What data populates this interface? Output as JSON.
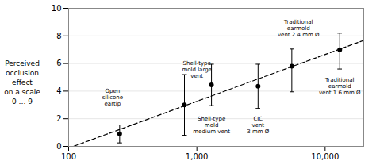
{
  "chart_data": {
    "type": "scatter",
    "y_label": "Perceived\nocclusion\neffect\non a scale\n0 … 9",
    "series": [
      {
        "type": "scatter",
        "color": "#000000",
        "marker": "circle",
        "x": [
          250,
          800,
          1300,
          3000,
          5500,
          13000
        ],
        "values": [
          0.9,
          3.0,
          4.45,
          4.35,
          5.8,
          7.0
        ],
        "error_low": [
          0.65,
          2.2,
          1.5,
          1.6,
          1.85,
          1.4
        ],
        "error_high": [
          0.65,
          2.2,
          1.5,
          1.6,
          1.25,
          1.2
        ]
      },
      {
        "type": "line",
        "color": "#000000",
        "line_style": "dashed",
        "x": [
          110,
          20000
        ],
        "values": [
          0.013,
          7.675
        ]
      }
    ],
    "annotations": [
      {
        "text": "Open\nsilicone\neartip",
        "x": 220,
        "y": 3.55,
        "align": "left"
      },
      {
        "text": "Shell-type\nmold large\nvent",
        "x": 1000,
        "y": 5.6,
        "align": "center"
      },
      {
        "text": "Shell-type\nmold\nmedium vent",
        "x": 1300,
        "y": 1.55,
        "align": "center"
      },
      {
        "text": "CIC\nvent\n3 mm Ø",
        "x": 3000,
        "y": 1.55,
        "align": "center"
      },
      {
        "text": "Traditional\nearmold\nvent 2.4 mm Ø",
        "x": 6200,
        "y": 8.55,
        "align": "center"
      },
      {
        "text": "Traditional\nearmold\nvent 1.6 mm Ø",
        "x": 13000,
        "y": 4.35,
        "align": "center"
      }
    ],
    "log": "x",
    "xlim": [
      100,
      20000
    ],
    "ylim": [
      0,
      10
    ],
    "xticks": [
      100,
      {
        "value": 1000,
        "label": "1,000"
      },
      {
        "value": 10000,
        "label": "10,000"
      }
    ],
    "yticks": [
      0,
      2,
      4,
      6,
      8,
      10
    ],
    "grid": true
  }
}
